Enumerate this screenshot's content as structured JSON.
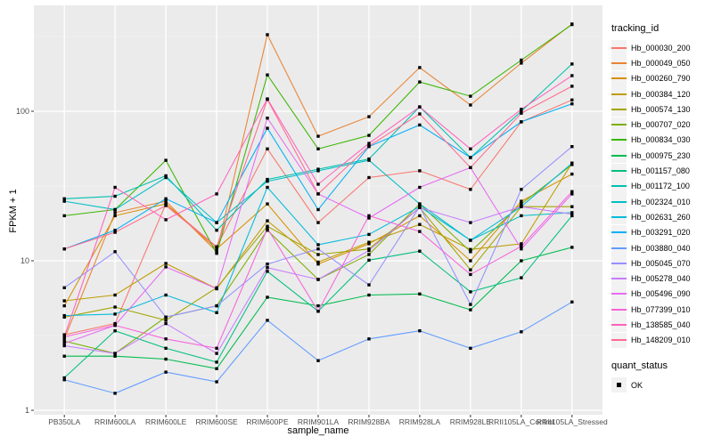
{
  "chart_data": {
    "type": "line",
    "xlabel": "sample_name",
    "ylabel": "FPKM + 1",
    "y_scale": "log10",
    "y_ticks": [
      1,
      10,
      100
    ],
    "ylim": [
      1,
      480
    ],
    "grid": "on",
    "legend_position": "right",
    "legend_titles": {
      "color": "tracking_id",
      "shape": "quant_status"
    },
    "quant_status_items": [
      "OK"
    ],
    "categories": [
      "PB350LA",
      "RRIM600LA",
      "RRIM600LE",
      "RRIM600SE",
      "RRIM600PE",
      "RRIM901LA",
      "RRIM928BA",
      "RRIM928LA",
      "RRIM928LE",
      "RRII105LA_Control",
      "RRII105LA_Stressed"
    ],
    "series": [
      {
        "name": "Hb_000030_200",
        "color": "#F8766D",
        "values": [
          3.2,
          3.8,
          24,
          12.4,
          56,
          18,
          36,
          40,
          30,
          85,
          119
        ]
      },
      {
        "name": "Hb_000049_050",
        "color": "#EA8331",
        "values": [
          3.0,
          21,
          25,
          11.5,
          325,
          68,
          92,
          196,
          110,
          210,
          383
        ]
      },
      {
        "name": "Hb_000260_790",
        "color": "#D89000",
        "values": [
          5.0,
          20,
          24,
          12,
          24,
          9.5,
          13,
          20,
          10,
          25,
          38
        ]
      },
      {
        "name": "Hb_000384_120",
        "color": "#BF9C00",
        "values": [
          5.4,
          5.9,
          9.6,
          6.5,
          18.5,
          9.8,
          13.3,
          17.5,
          11.9,
          13,
          45
        ]
      },
      {
        "name": "Hb_000574_130",
        "color": "#A3A500",
        "values": [
          4.2,
          4.9,
          4.0,
          6.6,
          17,
          11,
          12,
          22.7,
          8.7,
          23,
          23
        ]
      },
      {
        "name": "Hb_000707_020",
        "color": "#7CAE00",
        "values": [
          2.9,
          2.4,
          4.2,
          5.0,
          16,
          7.5,
          11,
          24,
          11.5,
          24,
          44
        ]
      },
      {
        "name": "Hb_000834_030",
        "color": "#39B600",
        "values": [
          20,
          22,
          47,
          11.2,
          175,
          56,
          69,
          157,
          126,
          220,
          380
        ]
      },
      {
        "name": "Hb_000975_230",
        "color": "#00BB4E",
        "values": [
          2.3,
          2.3,
          2.2,
          1.9,
          5.7,
          5.0,
          5.9,
          6.0,
          4.7,
          10,
          12.3
        ]
      },
      {
        "name": "Hb_001157_080",
        "color": "#00BF7D",
        "values": [
          1.65,
          3.4,
          2.6,
          2.1,
          8.5,
          4.6,
          10.1,
          11.6,
          6.2,
          7.7,
          20
        ]
      },
      {
        "name": "Hb_001172_100",
        "color": "#00C0AF",
        "values": [
          26,
          27,
          37,
          16,
          35,
          41,
          48,
          107,
          49,
          100,
          207
        ]
      },
      {
        "name": "Hb_002324_010",
        "color": "#00BFC4",
        "values": [
          25,
          22,
          36,
          18,
          34,
          40,
          47,
          24,
          13.7,
          20,
          21
        ]
      },
      {
        "name": "Hb_002631_260",
        "color": "#00BBDA",
        "values": [
          4.3,
          4.4,
          5.9,
          4.5,
          31,
          12.8,
          15,
          23,
          13.7,
          23,
          45
        ]
      },
      {
        "name": "Hb_003291_020",
        "color": "#00B0F6",
        "values": [
          12,
          16,
          26,
          18,
          77,
          22,
          58,
          81,
          49,
          85,
          112
        ]
      },
      {
        "name": "Hb_003880_040",
        "color": "#619CFF",
        "values": [
          1.6,
          1.3,
          1.8,
          1.55,
          4.0,
          2.15,
          3.0,
          3.4,
          2.6,
          3.35,
          5.3
        ]
      },
      {
        "name": "Hb_005045_070",
        "color": "#9590FF",
        "values": [
          6.6,
          11.5,
          4.2,
          5.0,
          9.5,
          12,
          6.9,
          23,
          5.1,
          30,
          58
        ]
      },
      {
        "name": "Hb_005278_040",
        "color": "#C77CFF",
        "values": [
          2.7,
          2.4,
          3.8,
          2.4,
          9.0,
          7.5,
          11.7,
          22.7,
          18,
          23,
          20.5
        ]
      },
      {
        "name": "Hb_005496_090",
        "color": "#E76BF3",
        "values": [
          2.8,
          3.7,
          9.1,
          6.5,
          90,
          28,
          19.3,
          31,
          42,
          12,
          28
        ]
      },
      {
        "name": "Hb_077399_010",
        "color": "#F763DC",
        "values": [
          3.1,
          3.7,
          3.0,
          2.6,
          16.5,
          4.6,
          20,
          15.7,
          8.1,
          12.5,
          29
        ]
      },
      {
        "name": "Hb_138585_040",
        "color": "#FF62BC",
        "values": [
          3.1,
          31,
          18.8,
          28,
          121,
          32.5,
          61,
          107,
          56,
          103,
          173
        ]
      },
      {
        "name": "Hb_148209_010",
        "color": "#FF6C91",
        "values": [
          12,
          15.5,
          23.4,
          12.4,
          120,
          28,
          58.6,
          96,
          42,
          97,
          147
        ]
      }
    ]
  },
  "theme": {
    "panel_bg": "#EBEBEB",
    "grid_major": "#FFFFFF",
    "grid_minor": "#F5F5F5",
    "tick_color": "#333333",
    "tick_text_color": "#4D4D4D",
    "point_color": "#000000"
  }
}
